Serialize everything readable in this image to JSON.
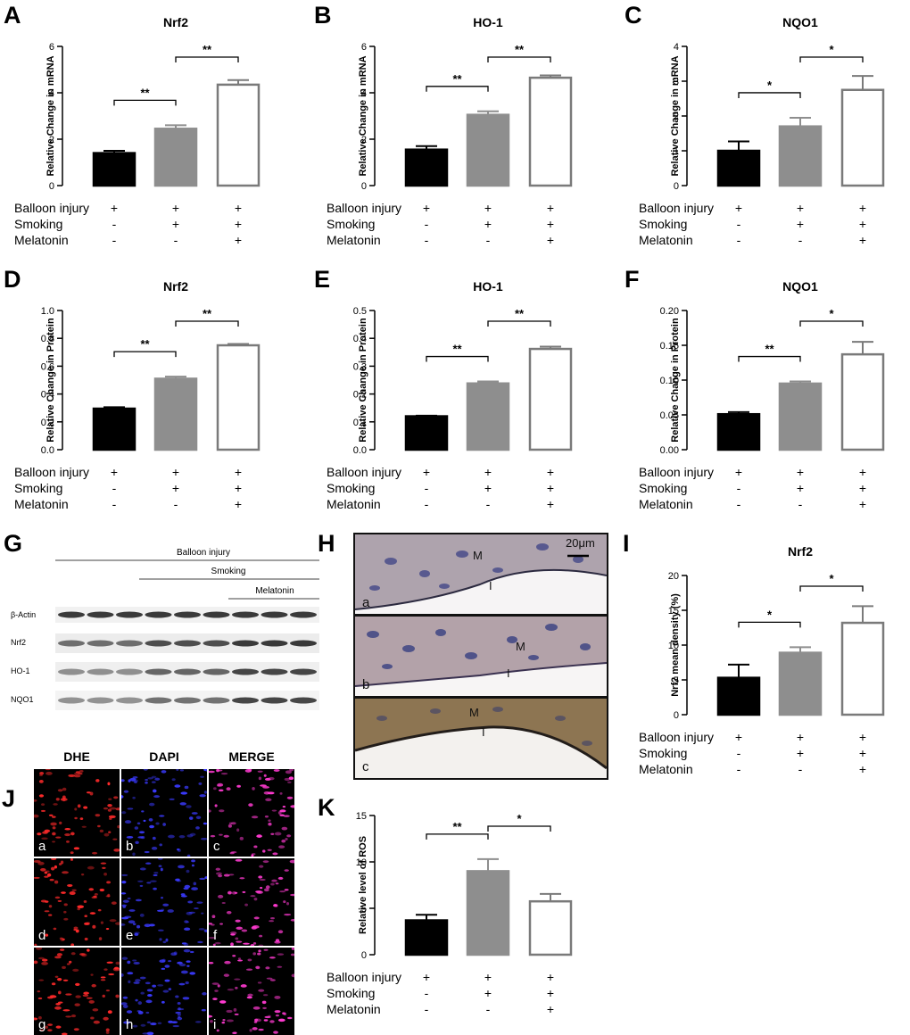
{
  "panel_letters": [
    "A",
    "B",
    "C",
    "D",
    "E",
    "F",
    "G",
    "H",
    "I",
    "J",
    "K"
  ],
  "condition_rows": [
    "Balloon injury",
    "Smoking",
    "Melatonin"
  ],
  "condition_signs": [
    [
      "+",
      "+",
      "+"
    ],
    [
      "-",
      "+",
      "+"
    ],
    [
      "-",
      "-",
      "+"
    ]
  ],
  "chart_data": [
    {
      "type": "bar",
      "title": "Nrf2",
      "ylabel": "Relative Change in mRNA",
      "ylim": [
        0,
        6
      ],
      "yticks": [
        "0",
        "2",
        "4",
        "6"
      ],
      "values": [
        1.4,
        2.45,
        4.35
      ],
      "errors": [
        0.1,
        0.15,
        0.2
      ],
      "significance": [
        {
          "from": 0,
          "to": 1,
          "label": "**"
        },
        {
          "from": 1,
          "to": 2,
          "label": "**"
        }
      ]
    },
    {
      "type": "bar",
      "title": "HO-1",
      "ylabel": "Relative Change in mRNA",
      "ylim": [
        0,
        6
      ],
      "yticks": [
        "0",
        "2",
        "4",
        "6"
      ],
      "values": [
        1.55,
        3.05,
        4.65
      ],
      "errors": [
        0.15,
        0.15,
        0.1
      ],
      "significance": [
        {
          "from": 0,
          "to": 1,
          "label": "**"
        },
        {
          "from": 1,
          "to": 2,
          "label": "**"
        }
      ]
    },
    {
      "type": "bar",
      "title": "NQO1",
      "ylabel": "Relative Change in mRNA",
      "ylim": [
        0,
        4
      ],
      "yticks": [
        "0",
        "1",
        "2",
        "3",
        "4"
      ],
      "values": [
        1.0,
        1.7,
        2.75
      ],
      "errors": [
        0.27,
        0.25,
        0.4
      ],
      "significance": [
        {
          "from": 0,
          "to": 1,
          "label": "*"
        },
        {
          "from": 1,
          "to": 2,
          "label": "*"
        }
      ]
    },
    {
      "type": "bar",
      "title": "Nrf2",
      "ylabel": "Relative Change in Protein",
      "ylim": [
        0,
        1.0
      ],
      "yticks": [
        "0.0",
        "0.2",
        "0.4",
        "0.6",
        "0.8",
        "1.0"
      ],
      "values": [
        0.295,
        0.51,
        0.75
      ],
      "errors": [
        0.01,
        0.015,
        0.01
      ],
      "significance": [
        {
          "from": 0,
          "to": 1,
          "label": "**"
        },
        {
          "from": 1,
          "to": 2,
          "label": "**"
        }
      ]
    },
    {
      "type": "bar",
      "title": "HO-1",
      "ylabel": "Relative Change in Protein",
      "ylim": [
        0,
        0.5
      ],
      "yticks": [
        "0.0",
        "0.1",
        "0.2",
        "0.3",
        "0.4",
        "0.5"
      ],
      "values": [
        0.12,
        0.238,
        0.362
      ],
      "errors": [
        0.002,
        0.007,
        0.008
      ],
      "significance": [
        {
          "from": 0,
          "to": 1,
          "label": "**"
        },
        {
          "from": 1,
          "to": 2,
          "label": "**"
        }
      ]
    },
    {
      "type": "bar",
      "title": "NQO1",
      "ylabel": "Relative Change in Protein",
      "ylim": [
        0,
        0.2
      ],
      "yticks": [
        "0.00",
        "0.05",
        "0.10",
        "0.15",
        "0.20"
      ],
      "values": [
        0.051,
        0.095,
        0.137
      ],
      "errors": [
        0.003,
        0.003,
        0.018
      ],
      "significance": [
        {
          "from": 0,
          "to": 1,
          "label": "**"
        },
        {
          "from": 1,
          "to": 2,
          "label": "*"
        }
      ]
    },
    {
      "type": "bar",
      "title": "Nrf2",
      "ylabel": "Nrf2 mean density (%)",
      "ylim": [
        0,
        20
      ],
      "yticks": [
        "0",
        "5",
        "10",
        "15",
        "20"
      ],
      "values": [
        5.3,
        8.9,
        13.2
      ],
      "errors": [
        1.9,
        0.8,
        2.4
      ],
      "significance": [
        {
          "from": 0,
          "to": 1,
          "label": "*"
        },
        {
          "from": 1,
          "to": 2,
          "label": "*"
        }
      ]
    },
    {
      "type": "bar",
      "title": "",
      "ylabel": "Relative level of ROS",
      "ylim": [
        0,
        15
      ],
      "yticks": [
        "0",
        "5",
        "10",
        "15"
      ],
      "values": [
        3.7,
        9.0,
        5.75
      ],
      "errors": [
        0.6,
        1.3,
        0.8
      ],
      "significance": [
        {
          "from": 0,
          "to": 1,
          "label": "**"
        },
        {
          "from": 1,
          "to": 2,
          "label": "*"
        }
      ]
    }
  ],
  "western_blot": {
    "balloon_label": "Balloon injury",
    "smoking_label": "Smoking",
    "melatonin_label": "Melatonin",
    "bands": [
      "β-Actin",
      "Nrf2",
      "HO-1",
      "NQO1"
    ]
  },
  "histology": {
    "scale_bar": "20μm",
    "panels": [
      {
        "label": "a",
        "m": "M",
        "i": "I"
      },
      {
        "label": "b",
        "m": "M",
        "i": "I"
      },
      {
        "label": "c",
        "m": "M",
        "i": "I"
      }
    ]
  },
  "fluorescence": {
    "headers": [
      "DHE",
      "DAPI",
      "MERGE"
    ],
    "tiles": [
      "a",
      "b",
      "c",
      "d",
      "e",
      "f",
      "g",
      "h",
      "i"
    ]
  },
  "colors": {
    "bar1": "#000000",
    "bar2": "#8e8e8e",
    "bar3": "#ffffff",
    "bar3_stroke": "#7a7a7a"
  }
}
